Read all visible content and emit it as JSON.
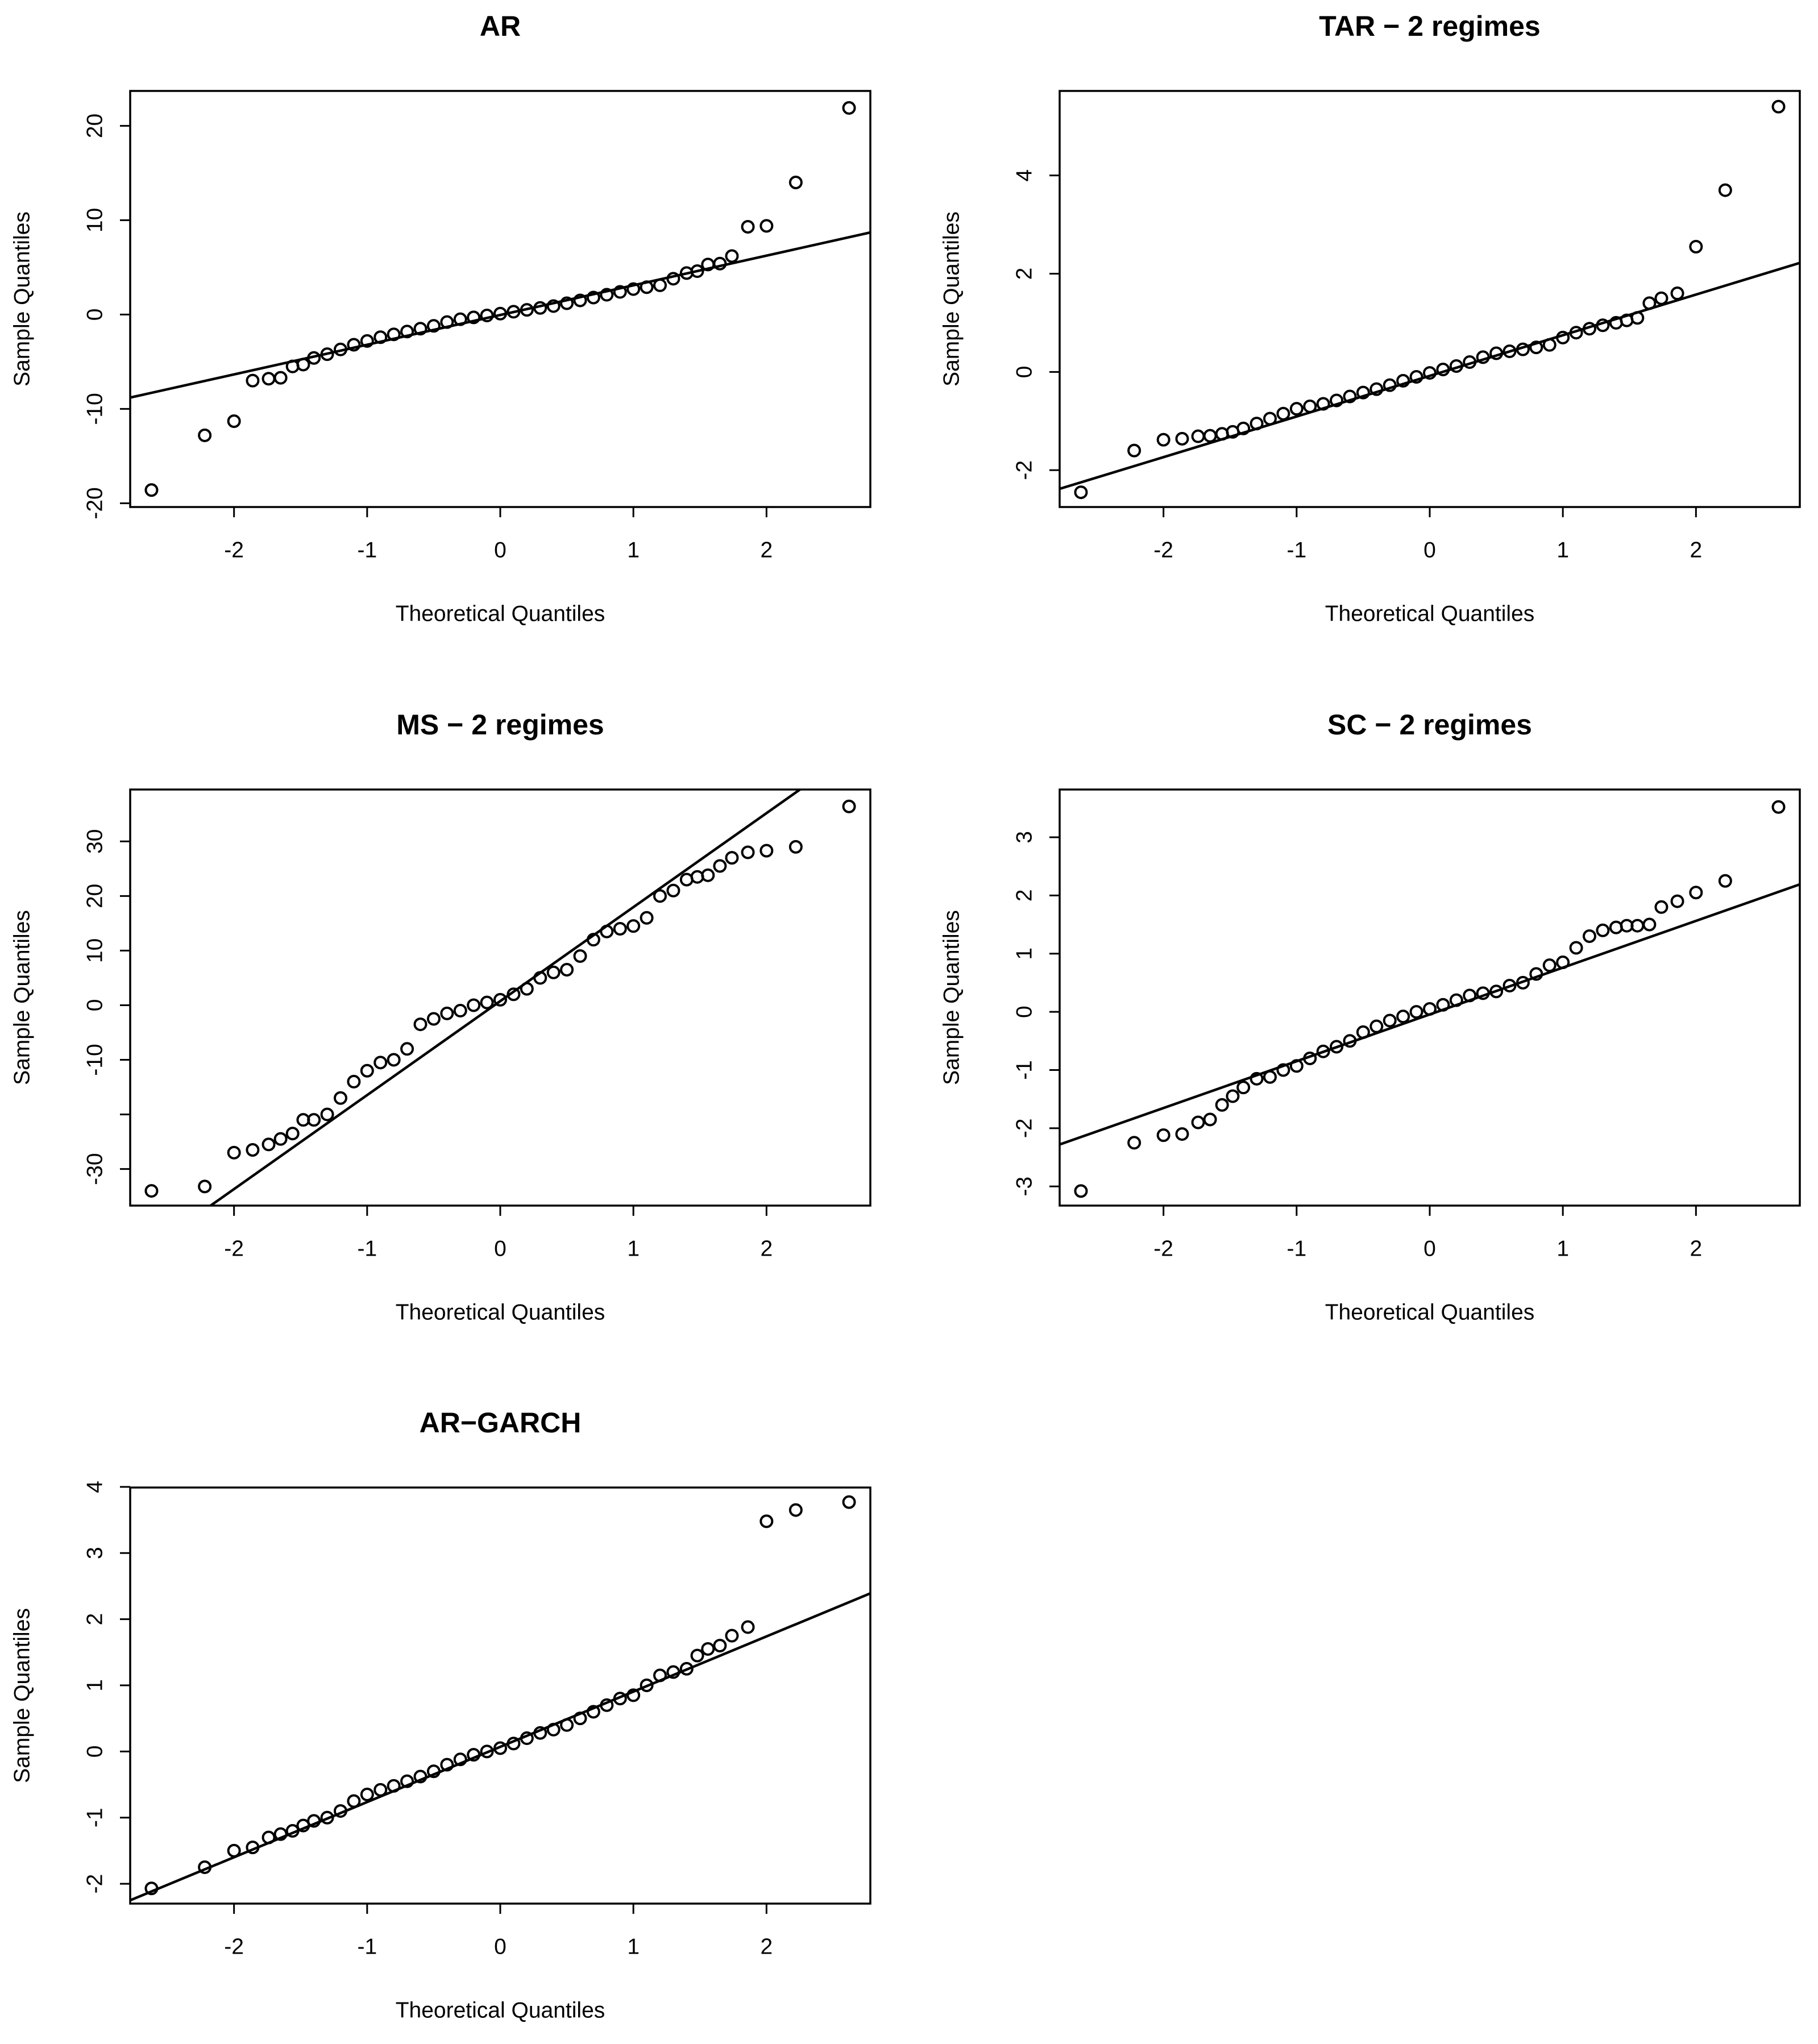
{
  "chart_data": [
    {
      "type": "scatter",
      "title": "AR",
      "xlabel": "Theoretical Quantiles",
      "ylabel": "Sample Quantiles",
      "color": "#000000",
      "xlim": [
        -2.78,
        2.78
      ],
      "xticks": [
        -2,
        -1,
        0,
        1,
        2
      ],
      "ylim": [
        -20.4,
        23.7
      ],
      "yticks": [
        -20,
        -10,
        0,
        10,
        20
      ],
      "x": [
        -2.62,
        -2.22,
        -2.0,
        -1.86,
        -1.74,
        -1.65,
        -1.56,
        -1.48,
        -1.4,
        -1.3,
        -1.2,
        -1.1,
        -1.0,
        -0.9,
        -0.8,
        -0.7,
        -0.6,
        -0.5,
        -0.4,
        -0.3,
        -0.2,
        -0.1,
        0,
        0.1,
        0.2,
        0.3,
        0.4,
        0.5,
        0.6,
        0.7,
        0.8,
        0.9,
        1.0,
        1.1,
        1.2,
        1.3,
        1.4,
        1.48,
        1.56,
        1.65,
        1.74,
        1.86,
        2.0,
        2.22,
        2.62
      ],
      "values": [
        -18.6,
        -12.8,
        -11.3,
        -7.0,
        -6.8,
        -6.7,
        -5.5,
        -5.3,
        -4.6,
        -4.2,
        -3.7,
        -3.2,
        -2.8,
        -2.4,
        -2.1,
        -1.8,
        -1.5,
        -1.2,
        -0.8,
        -0.5,
        -0.3,
        -0.1,
        0.1,
        0.3,
        0.5,
        0.7,
        0.9,
        1.2,
        1.5,
        1.8,
        2.1,
        2.4,
        2.7,
        2.9,
        3.1,
        3.8,
        4.4,
        4.6,
        5.3,
        5.4,
        6.2,
        9.3,
        9.4,
        14.0,
        21.9
      ],
      "line_x": [
        -2.78,
        2.78
      ],
      "line_values": [
        -8.8,
        8.7
      ]
    },
    {
      "type": "scatter",
      "title": "TAR − 2 regimes",
      "xlabel": "Theoretical Quantiles",
      "ylabel": "Sample Quantiles",
      "color": "#000000",
      "xlim": [
        -2.78,
        2.78
      ],
      "xticks": [
        -2,
        -1,
        0,
        1,
        2
      ],
      "ylim": [
        -2.75,
        5.72
      ],
      "yticks": [
        -2,
        0,
        2,
        4
      ],
      "x": [
        -2.62,
        -2.22,
        -2.0,
        -1.86,
        -1.74,
        -1.65,
        -1.56,
        -1.48,
        -1.4,
        -1.3,
        -1.2,
        -1.1,
        -1.0,
        -0.9,
        -0.8,
        -0.7,
        -0.6,
        -0.5,
        -0.4,
        -0.3,
        -0.2,
        -0.1,
        0,
        0.1,
        0.2,
        0.3,
        0.4,
        0.5,
        0.6,
        0.7,
        0.8,
        0.9,
        1.0,
        1.1,
        1.2,
        1.3,
        1.4,
        1.48,
        1.56,
        1.65,
        1.74,
        1.86,
        2.0,
        2.22,
        2.62
      ],
      "values": [
        -2.45,
        -1.6,
        -1.38,
        -1.36,
        -1.31,
        -1.3,
        -1.26,
        -1.22,
        -1.15,
        -1.05,
        -0.95,
        -0.85,
        -0.75,
        -0.7,
        -0.65,
        -0.58,
        -0.5,
        -0.42,
        -0.35,
        -0.27,
        -0.18,
        -0.1,
        -0.02,
        0.05,
        0.12,
        0.2,
        0.3,
        0.38,
        0.42,
        0.46,
        0.5,
        0.55,
        0.7,
        0.8,
        0.88,
        0.95,
        1.0,
        1.05,
        1.1,
        1.4,
        1.5,
        1.6,
        2.55,
        3.7,
        5.4
      ],
      "line_x": [
        -2.78,
        2.78
      ],
      "line_values": [
        -2.38,
        2.22
      ]
    },
    {
      "type": "scatter",
      "title": "MS − 2 regimes",
      "xlabel": "Theoretical Quantiles",
      "ylabel": "Sample Quantiles",
      "color": "#000000",
      "xlim": [
        -2.78,
        2.78
      ],
      "xticks": [
        -2,
        -1,
        0,
        1,
        2
      ],
      "ylim": [
        -36.7,
        39.5
      ],
      "yticks": [
        -30,
        {
          "value": -20,
          "label": null
        },
        -10,
        0,
        10,
        20,
        30
      ],
      "x": [
        -2.62,
        -2.22,
        -2.0,
        -1.86,
        -1.74,
        -1.65,
        -1.56,
        -1.48,
        -1.4,
        -1.3,
        -1.2,
        -1.1,
        -1.0,
        -0.9,
        -0.8,
        -0.7,
        -0.6,
        -0.5,
        -0.4,
        -0.3,
        -0.2,
        -0.1,
        0,
        0.1,
        0.2,
        0.3,
        0.4,
        0.5,
        0.6,
        0.7,
        0.8,
        0.9,
        1.0,
        1.1,
        1.2,
        1.3,
        1.4,
        1.48,
        1.56,
        1.65,
        1.74,
        1.86,
        2.0,
        2.22,
        2.62
      ],
      "values": [
        -34.0,
        -33.2,
        -27.0,
        -26.5,
        -25.5,
        -24.5,
        -23.5,
        -21,
        -21,
        -20,
        -17,
        -14,
        -12,
        -10.5,
        -10,
        -8,
        -3.5,
        -2.5,
        -1.5,
        -1,
        0,
        0.5,
        1,
        2,
        3,
        5,
        6,
        6.5,
        9,
        12,
        13.5,
        14,
        14.5,
        16,
        20,
        21,
        23,
        23.5,
        23.8,
        25.5,
        27,
        28,
        28.3,
        29,
        36.4
      ],
      "line_x": [
        -2.78,
        2.78
      ],
      "line_values": [
        -47.1,
        48.6
      ]
    },
    {
      "type": "scatter",
      "title": "SC − 2 regimes",
      "xlabel": "Theoretical Quantiles",
      "ylabel": "Sample Quantiles",
      "color": "#000000",
      "xlim": [
        -2.78,
        2.78
      ],
      "xticks": [
        -2,
        -1,
        0,
        1,
        2
      ],
      "ylim": [
        -3.33,
        3.82
      ],
      "yticks": [
        -3,
        -2,
        -1,
        0,
        1,
        2,
        3
      ],
      "x": [
        -2.62,
        -2.22,
        -2.0,
        -1.86,
        -1.74,
        -1.65,
        -1.56,
        -1.48,
        -1.4,
        -1.3,
        -1.2,
        -1.1,
        -1.0,
        -0.9,
        -0.8,
        -0.7,
        -0.6,
        -0.5,
        -0.4,
        -0.3,
        -0.2,
        -0.1,
        0,
        0.1,
        0.2,
        0.3,
        0.4,
        0.5,
        0.6,
        0.7,
        0.8,
        0.9,
        1.0,
        1.1,
        1.2,
        1.3,
        1.4,
        1.48,
        1.56,
        1.65,
        1.74,
        1.86,
        2.0,
        2.22,
        2.62
      ],
      "values": [
        -3.08,
        -2.25,
        -2.12,
        -2.1,
        -1.9,
        -1.85,
        -1.6,
        -1.45,
        -1.3,
        -1.15,
        -1.12,
        -1.0,
        -0.93,
        -0.8,
        -0.68,
        -0.6,
        -0.5,
        -0.35,
        -0.25,
        -0.15,
        -0.08,
        0,
        0.05,
        0.12,
        0.2,
        0.28,
        0.32,
        0.35,
        0.45,
        0.5,
        0.65,
        0.8,
        0.85,
        1.1,
        1.3,
        1.4,
        1.45,
        1.48,
        1.48,
        1.5,
        1.8,
        1.9,
        2.05,
        2.25,
        3.52
      ],
      "line_x": [
        -2.78,
        2.78
      ],
      "line_values": [
        -2.28,
        2.19
      ]
    },
    {
      "type": "scatter",
      "title": "AR−GARCH",
      "xlabel": "Theoretical Quantiles",
      "ylabel": "Sample Quantiles",
      "color": "#000000",
      "xlim": [
        -2.78,
        2.78
      ],
      "xticks": [
        -2,
        -1,
        0,
        1,
        2
      ],
      "ylim": [
        -2.3,
        3.99
      ],
      "yticks": [
        -2,
        -1,
        0,
        1,
        2,
        3,
        4
      ],
      "x": [
        -2.62,
        -2.22,
        -2.0,
        -1.86,
        -1.74,
        -1.65,
        -1.56,
        -1.48,
        -1.4,
        -1.3,
        -1.2,
        -1.1,
        -1.0,
        -0.9,
        -0.8,
        -0.7,
        -0.6,
        -0.5,
        -0.4,
        -0.3,
        -0.2,
        -0.1,
        0,
        0.1,
        0.2,
        0.3,
        0.4,
        0.5,
        0.6,
        0.7,
        0.8,
        0.9,
        1.0,
        1.1,
        1.2,
        1.3,
        1.4,
        1.48,
        1.56,
        1.65,
        1.74,
        1.86,
        2.0,
        2.22,
        2.62
      ],
      "values": [
        -2.07,
        -1.75,
        -1.5,
        -1.45,
        -1.3,
        -1.25,
        -1.2,
        -1.12,
        -1.05,
        -1.0,
        -0.9,
        -0.75,
        -0.65,
        -0.58,
        -0.52,
        -0.45,
        -0.38,
        -0.3,
        -0.2,
        -0.12,
        -0.05,
        0,
        0.05,
        0.12,
        0.2,
        0.28,
        0.33,
        0.4,
        0.5,
        0.6,
        0.7,
        0.8,
        0.85,
        1.0,
        1.15,
        1.2,
        1.25,
        1.45,
        1.55,
        1.6,
        1.75,
        1.88,
        3.48,
        3.65,
        3.77
      ],
      "line_x": [
        -2.78,
        2.78
      ],
      "line_values": [
        -2.25,
        2.39
      ]
    }
  ]
}
